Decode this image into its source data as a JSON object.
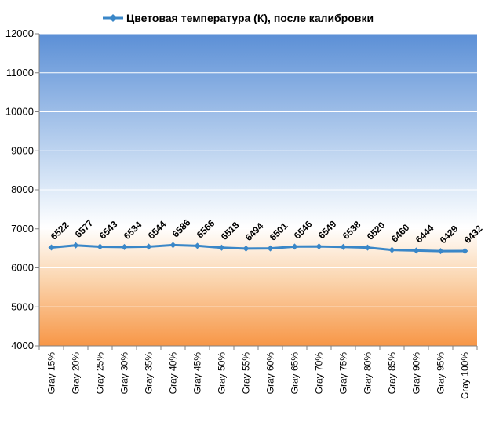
{
  "chart_data": {
    "type": "line",
    "categories": [
      "Gray 15%",
      "Gray 20%",
      "Gray 25%",
      "Gray 30%",
      "Gray 35%",
      "Gray 40%",
      "Gray 45%",
      "Gray 50%",
      "Gray 55%",
      "Gray 60%",
      "Gray 65%",
      "Gray 70%",
      "Gray 75%",
      "Gray 80%",
      "Gray 85%",
      "Gray 90%",
      "Gray 95%",
      "Gray 100%"
    ],
    "series": [
      {
        "name": "Цветовая температура (К), после калибровки",
        "values": [
          6522,
          6577,
          6543,
          6534,
          6544,
          6586,
          6566,
          6518,
          6494,
          6501,
          6546,
          6549,
          6538,
          6520,
          6460,
          6444,
          6429,
          6432
        ],
        "color": "#3a87c8",
        "marker": "diamond"
      }
    ],
    "ylim": [
      4000,
      12000
    ],
    "yticks": [
      4000,
      5000,
      6000,
      7000,
      8000,
      9000,
      10000,
      11000,
      12000
    ],
    "grid": true,
    "legend_position": "top",
    "data_labels": true,
    "background_gradient": {
      "top": "#5b8fd6",
      "middle": "#ffffff",
      "bottom": "#f79646"
    }
  }
}
